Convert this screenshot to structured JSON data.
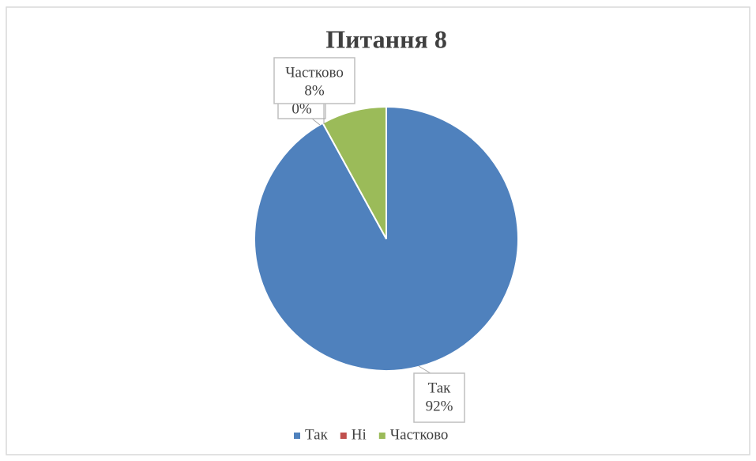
{
  "chart_data": {
    "type": "pie",
    "title": "Питання 8",
    "categories": [
      "Так",
      "Ні",
      "Частково"
    ],
    "values": [
      92,
      0,
      8
    ],
    "value_labels": [
      "92%",
      "0%",
      "8%"
    ],
    "colors": [
      "#4f81bd",
      "#c0504d",
      "#9bbb59"
    ],
    "legend": "bottom"
  }
}
